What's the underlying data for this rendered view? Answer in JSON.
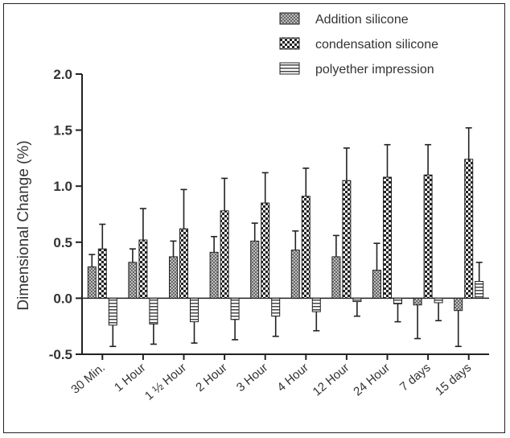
{
  "chart_data": {
    "type": "bar",
    "title": "",
    "xlabel": "",
    "ylabel": "Dimensional Change (%)",
    "ylim": [
      -0.5,
      2.0
    ],
    "yticks": [
      "2.0",
      "1.5",
      "1.0",
      "0.5",
      "0.0",
      "-0.5"
    ],
    "grid": false,
    "legend_position": "top-right",
    "categories": [
      "30 Min.",
      "1 Hour",
      "1 ½ Hour",
      "2 Hour",
      "3 Hour",
      "4 Hour",
      "12 Hour",
      "24 Hour",
      "7 days",
      "15 days"
    ],
    "series": [
      {
        "name": "Addition silicone",
        "pattern": "crosshatch",
        "values": [
          0.28,
          0.32,
          0.37,
          0.41,
          0.51,
          0.43,
          0.37,
          0.25,
          -0.06,
          -0.11
        ],
        "error": [
          0.11,
          0.12,
          0.14,
          0.14,
          0.16,
          0.17,
          0.19,
          0.24,
          0.3,
          0.32
        ]
      },
      {
        "name": "condensation silicone",
        "pattern": "checker",
        "values": [
          0.44,
          0.52,
          0.62,
          0.78,
          0.85,
          0.91,
          1.05,
          1.08,
          1.1,
          1.24
        ],
        "error": [
          0.22,
          0.28,
          0.35,
          0.29,
          0.27,
          0.25,
          0.29,
          0.29,
          0.27,
          0.28
        ]
      },
      {
        "name": "polyether impression",
        "pattern": "horizontal-lines",
        "values": [
          -0.24,
          -0.23,
          -0.21,
          -0.19,
          -0.16,
          -0.12,
          -0.03,
          -0.05,
          -0.04,
          0.15
        ],
        "error": [
          0.19,
          0.18,
          0.19,
          0.18,
          0.18,
          0.17,
          0.13,
          0.16,
          0.16,
          0.17
        ]
      }
    ]
  }
}
